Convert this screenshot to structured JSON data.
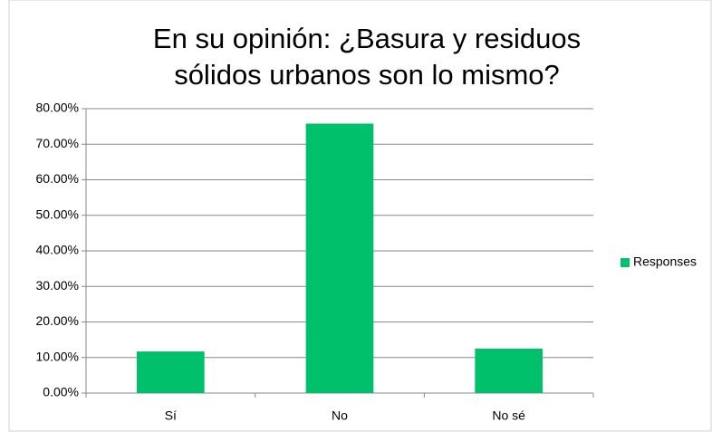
{
  "chart_data": {
    "type": "bar",
    "title": [
      "En su opinión: ¿Basura y residuos",
      "sólidos urbanos son lo mismo?"
    ],
    "categories": [
      "Sí",
      "No",
      "No sé"
    ],
    "series": [
      {
        "name": "Responses",
        "color": "#00c06b",
        "values": [
          11.7,
          75.8,
          12.5
        ]
      }
    ],
    "ylim": [
      0,
      80
    ],
    "yticks": [
      {
        "value": 0,
        "label": "0.00%"
      },
      {
        "value": 10,
        "label": "10.00%"
      },
      {
        "value": 20,
        "label": "20.00%"
      },
      {
        "value": 30,
        "label": "30.00%"
      },
      {
        "value": 40,
        "label": "40.00%"
      },
      {
        "value": 50,
        "label": "50.00%"
      },
      {
        "value": 60,
        "label": "60.00%"
      },
      {
        "value": 70,
        "label": "70.00%"
      },
      {
        "value": 80,
        "label": "80.00%"
      }
    ],
    "grid": true,
    "legend": "right"
  }
}
